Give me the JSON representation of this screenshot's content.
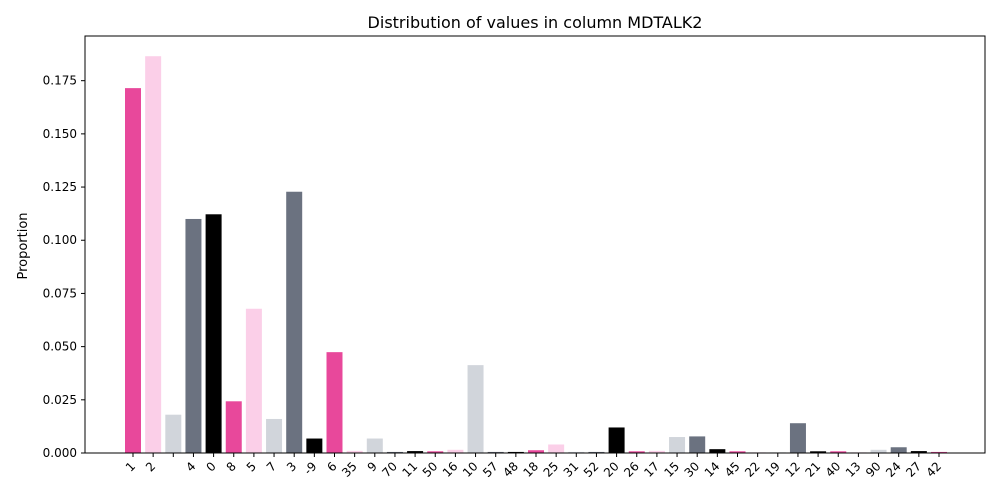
{
  "chart_data": {
    "type": "bar",
    "title": "Distribution of values in column MDTALK2",
    "xlabel": "",
    "ylabel": "Proportion",
    "ylim": [
      0,
      0.196
    ],
    "yticks": [
      "0.000",
      "0.025",
      "0.050",
      "0.075",
      "0.100",
      "0.125",
      "0.150",
      "0.175"
    ],
    "grid": false,
    "categories": [
      "1",
      "2",
      "",
      "4",
      "0",
      "8",
      "5",
      "7",
      "3",
      "-9",
      "6",
      "35",
      "9",
      "70",
      "11",
      "50",
      "16",
      "10",
      "57",
      "48",
      "18",
      "25",
      "31",
      "52",
      "20",
      "26",
      "17",
      "15",
      "30",
      "14",
      "45",
      "22",
      "19",
      "12",
      "21",
      "40",
      "13",
      "90",
      "24",
      "27",
      "42"
    ],
    "values": [
      0.1715,
      0.1865,
      0.018,
      0.11,
      0.1122,
      0.0243,
      0.0678,
      0.016,
      0.1228,
      0.0068,
      0.0474,
      0.001,
      0.0068,
      0.0005,
      0.0009,
      0.0008,
      0.0015,
      0.0413,
      0.0005,
      0.0005,
      0.0013,
      0.004,
      0.0005,
      0.0005,
      0.012,
      0.0008,
      0.001,
      0.0075,
      0.0078,
      0.0018,
      0.0008,
      0.0003,
      0.0003,
      0.014,
      0.0008,
      0.0008,
      0.0003,
      0.0015,
      0.0027,
      0.0009,
      0.0005
    ],
    "colors": [
      "#e8489b",
      "#fbcfe8",
      "#d1d5db",
      "#6b7280",
      "#000000"
    ]
  }
}
